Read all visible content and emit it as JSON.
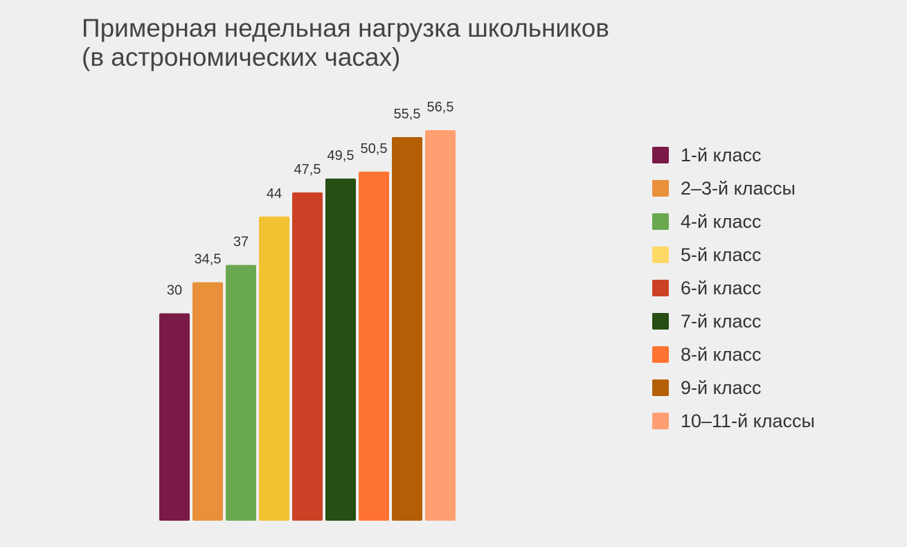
{
  "chart_data": {
    "type": "bar",
    "title": [
      "Примерная недельная нагрузка школьников",
      "(в астрономических часах)"
    ],
    "categories": [
      "1-й класс",
      "2–3-й классы",
      "4-й класс",
      "5-й класс",
      "6-й класс",
      "7-й класс",
      "8-й класс",
      "9-й класс",
      "10–11-й классы"
    ],
    "values": [
      30,
      34.5,
      37,
      44,
      47.5,
      49.5,
      50.5,
      55.5,
      56.5
    ],
    "value_labels": [
      "30",
      "34,5",
      "37",
      "44",
      "47,5",
      "49,5",
      "50,5",
      "55,5",
      "56,5"
    ],
    "colors": [
      "#7a1a46",
      "#e8903a",
      "#6aa84f",
      "#f1c232",
      "#cc4125",
      "#274e13",
      "#ff7433",
      "#b45f06",
      "#ff9e70"
    ],
    "legend_colors": [
      "#7a1a46",
      "#e8903a",
      "#6aa84f",
      "#ffd966",
      "#cc4125",
      "#274e13",
      "#ff7433",
      "#b45f06",
      "#ff9e70"
    ],
    "xlabel": "",
    "ylabel": "",
    "ylim": [
      0,
      56.5
    ],
    "grid": false,
    "legend_position": "right"
  }
}
